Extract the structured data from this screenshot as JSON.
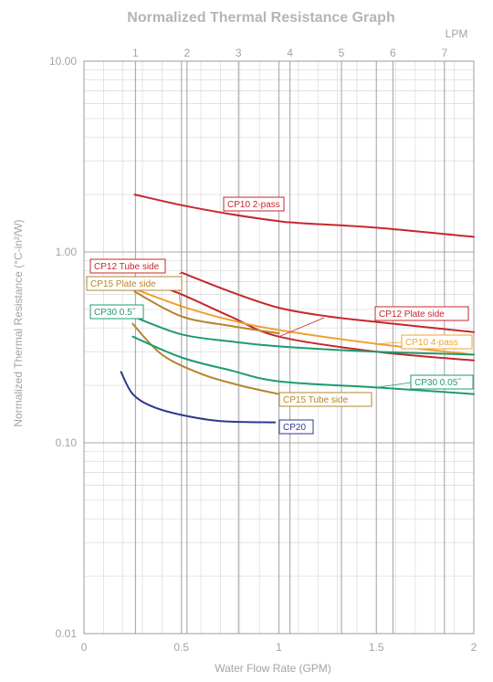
{
  "chart_data": {
    "type": "line",
    "title": "Normalized Thermal Resistance Graph",
    "xlabel": "Water Flow Rate (GPM)",
    "ylabel": "Normalized Thermal Resistance (°C-in²/W)",
    "secondary_x_label": "LPM",
    "xlim": [
      0,
      2
    ],
    "ylim": [
      0.01,
      10
    ],
    "y_scale": "log",
    "grid": true,
    "x_ticks": [
      "0",
      "0.5",
      "1",
      "1.5",
      "2"
    ],
    "y_ticks": [
      "10.00",
      "1.00",
      "0.10",
      "0.01"
    ],
    "x_top_ticks": [
      "1",
      "2",
      "3",
      "4",
      "5",
      "6",
      "7"
    ],
    "series": [
      {
        "name": "CP10 2-pass",
        "color": "#c8262c",
        "x": [
          0.26,
          0.5,
          0.75,
          1.0,
          1.1,
          1.5,
          2.0
        ],
        "y": [
          2.0,
          1.76,
          1.58,
          1.45,
          1.42,
          1.34,
          1.2
        ]
      },
      {
        "name": "CP12 Tube side",
        "color": "#c8262c",
        "x": [
          0.5,
          0.75,
          1.0,
          1.25,
          1.5,
          2.0
        ],
        "y": [
          0.78,
          0.62,
          0.51,
          0.46,
          0.43,
          0.38
        ]
      },
      {
        "name": "CP12 Plate side",
        "color": "#c8262c",
        "x": [
          0.26,
          0.5,
          0.75,
          1.0,
          1.5,
          2.0
        ],
        "y": [
          0.74,
          0.6,
          0.46,
          0.36,
          0.3,
          0.27
        ]
      },
      {
        "name": "CP10 4-pass",
        "color": "#f0a233",
        "x": [
          0.26,
          0.5,
          0.75,
          1.0,
          1.5,
          2.0
        ],
        "y": [
          0.64,
          0.52,
          0.44,
          0.39,
          0.33,
          0.29
        ]
      },
      {
        "name": "CP15 Plate side",
        "color": "#b5852f",
        "x": [
          0.26,
          0.5,
          0.75,
          1.0
        ],
        "y": [
          0.62,
          0.46,
          0.41,
          0.375
        ]
      },
      {
        "name": "CP15 Tube side",
        "color": "#b5852f",
        "x": [
          0.25,
          0.4,
          0.6,
          0.8,
          1.0
        ],
        "y": [
          0.42,
          0.29,
          0.23,
          0.2,
          0.18
        ]
      },
      {
        "name": "CP30 0.5˝",
        "color": "#1f9b6f",
        "x": [
          0.25,
          0.5,
          0.75,
          1.0,
          1.5,
          2.0
        ],
        "y": [
          0.46,
          0.37,
          0.34,
          0.32,
          0.3,
          0.29
        ]
      },
      {
        "name": "CP30 0.05˝",
        "color": "#1f9b6f",
        "x": [
          0.25,
          0.5,
          0.75,
          1.0,
          1.5,
          2.0
        ],
        "y": [
          0.36,
          0.28,
          0.24,
          0.21,
          0.195,
          0.18
        ]
      },
      {
        "name": "CP20",
        "color": "#2b3990",
        "x": [
          0.19,
          0.25,
          0.35,
          0.5,
          0.7,
          0.98
        ],
        "y": [
          0.235,
          0.18,
          0.155,
          0.14,
          0.13,
          0.128
        ]
      }
    ],
    "labels": [
      {
        "text": "CP10 2-pass",
        "color": "#c8262c",
        "series": 0
      },
      {
        "text": "CP12 Tube side",
        "color": "#c8262c",
        "series": 1
      },
      {
        "text": "CP15 Plate side",
        "color": "#b5852f",
        "series": 4
      },
      {
        "text": "CP30 0.5˝",
        "color": "#1f9b6f",
        "series": 6
      },
      {
        "text": "CP12 Plate side",
        "color": "#c8262c",
        "series": 2
      },
      {
        "text": "CP10 4-pass",
        "color": "#f0a233",
        "series": 3
      },
      {
        "text": "CP30 0.05˝",
        "color": "#1f9b6f",
        "series": 7
      },
      {
        "text": "CP15 Tube side",
        "color": "#b5852f",
        "series": 5
      },
      {
        "text": "CP20",
        "color": "#2b3990",
        "series": 8
      }
    ]
  }
}
